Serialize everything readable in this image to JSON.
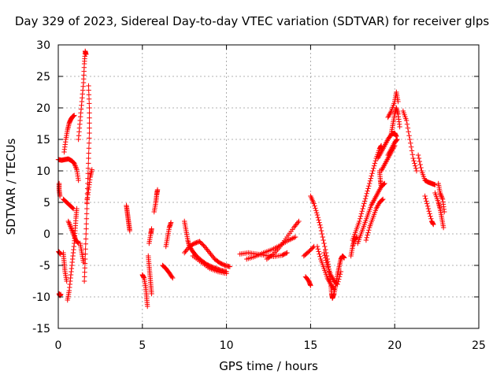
{
  "chart_data": {
    "type": "scatter",
    "title": "Day 329 of 2023, Sidereal Day-to-day VTEC variation (SDTVAR) for receiver glps",
    "xlabel": "GPS time / hours",
    "ylabel": "SDTVAR / TECUs",
    "xlim": [
      0,
      25
    ],
    "ylim": [
      -15,
      30
    ],
    "xticks": [
      0,
      5,
      10,
      15,
      20,
      25
    ],
    "yticks": [
      -15,
      -10,
      -5,
      0,
      5,
      10,
      15,
      20,
      25,
      30
    ],
    "grid": true,
    "marker": "+",
    "series": [
      {
        "name": "SDTVAR",
        "color": "#ff0000",
        "tracks": [
          [
            [
              0.0,
              11.8
            ],
            [
              0.2,
              11.7
            ],
            [
              0.4,
              11.8
            ],
            [
              0.6,
              11.9
            ],
            [
              0.8,
              11.6
            ],
            [
              0.95,
              11.2
            ],
            [
              1.1,
              10.2
            ],
            [
              1.2,
              8.5
            ]
          ],
          [
            [
              0.35,
              13.0
            ],
            [
              0.45,
              15.0
            ],
            [
              0.55,
              16.5
            ],
            [
              0.65,
              17.6
            ],
            [
              0.75,
              18.2
            ],
            [
              0.85,
              18.6
            ],
            [
              0.95,
              18.8
            ]
          ],
          [
            [
              0.05,
              8.0
            ],
            [
              0.05,
              7.0
            ],
            [
              0.1,
              6.0
            ]
          ],
          [
            [
              0.02,
              -2.8
            ],
            [
              0.08,
              -3.0
            ],
            [
              0.12,
              -3.2
            ]
          ],
          [
            [
              0.05,
              -9.5
            ],
            [
              0.1,
              -9.8
            ],
            [
              0.15,
              -9.6
            ]
          ],
          [
            [
              0.3,
              5.5
            ],
            [
              0.5,
              5.0
            ],
            [
              0.7,
              4.5
            ],
            [
              0.9,
              4.0
            ]
          ],
          [
            [
              0.3,
              -3.0
            ],
            [
              0.35,
              -4.5
            ],
            [
              0.4,
              -6.0
            ],
            [
              0.5,
              -7.5
            ]
          ],
          [
            [
              0.55,
              -10.5
            ],
            [
              0.65,
              -9.0
            ],
            [
              0.75,
              -6.5
            ],
            [
              0.85,
              -4.0
            ],
            [
              0.95,
              -1.5
            ],
            [
              1.0,
              0.5
            ],
            [
              1.05,
              2.5
            ],
            [
              1.1,
              4.0
            ]
          ],
          [
            [
              0.6,
              2.0
            ],
            [
              0.75,
              1.0
            ],
            [
              0.9,
              0.0
            ],
            [
              1.05,
              -1.0
            ],
            [
              1.2,
              -1.5
            ]
          ],
          [
            [
              1.2,
              15.0
            ],
            [
              1.3,
              18.0
            ],
            [
              1.4,
              21.0
            ],
            [
              1.5,
              24.0
            ],
            [
              1.55,
              27.0
            ],
            [
              1.6,
              29.0
            ],
            [
              1.65,
              28.5
            ]
          ],
          [
            [
              1.55,
              -7.5
            ],
            [
              1.6,
              -4.0
            ],
            [
              1.65,
              0.0
            ],
            [
              1.7,
              4.0
            ],
            [
              1.75,
              8.0
            ],
            [
              1.8,
              12.0
            ],
            [
              1.85,
              16.0
            ],
            [
              1.85,
              20.0
            ],
            [
              1.8,
              23.5
            ]
          ],
          [
            [
              1.7,
              5.0
            ],
            [
              1.8,
              7.0
            ],
            [
              1.9,
              9.0
            ],
            [
              2.0,
              10.2
            ]
          ],
          [
            [
              1.3,
              -1.5
            ],
            [
              1.4,
              -3.0
            ],
            [
              1.5,
              -4.5
            ]
          ],
          [
            [
              4.05,
              4.5
            ],
            [
              4.1,
              3.5
            ],
            [
              4.15,
              2.5
            ],
            [
              4.2,
              1.5
            ],
            [
              4.25,
              0.5
            ]
          ],
          [
            [
              5.0,
              -6.5
            ],
            [
              5.1,
              -7.0
            ],
            [
              5.2,
              -8.5
            ],
            [
              5.25,
              -10.0
            ],
            [
              5.3,
              -11.5
            ]
          ],
          [
            [
              5.35,
              -3.5
            ],
            [
              5.4,
              -5.0
            ],
            [
              5.45,
              -6.5
            ],
            [
              5.5,
              -8.0
            ],
            [
              5.55,
              -9.5
            ]
          ],
          [
            [
              5.4,
              -1.5
            ],
            [
              5.5,
              0.0
            ],
            [
              5.55,
              0.8
            ]
          ],
          [
            [
              5.7,
              3.5
            ],
            [
              5.8,
              5.0
            ],
            [
              5.85,
              6.2
            ],
            [
              5.9,
              7.0
            ]
          ],
          [
            [
              6.2,
              -5.0
            ],
            [
              6.4,
              -5.5
            ],
            [
              6.6,
              -6.2
            ],
            [
              6.8,
              -7.0
            ]
          ],
          [
            [
              6.4,
              -2.0
            ],
            [
              6.5,
              -0.5
            ],
            [
              6.6,
              1.0
            ],
            [
              6.7,
              1.8
            ]
          ],
          [
            [
              7.5,
              2.0
            ],
            [
              7.6,
              0.5
            ],
            [
              7.7,
              -1.0
            ],
            [
              7.8,
              -2.0
            ],
            [
              8.0,
              -2.8
            ],
            [
              8.2,
              -3.5
            ],
            [
              8.5,
              -4.2
            ],
            [
              8.8,
              -4.8
            ],
            [
              9.1,
              -5.2
            ],
            [
              9.4,
              -5.5
            ],
            [
              9.7,
              -5.8
            ],
            [
              10.0,
              -6.0
            ]
          ],
          [
            [
              7.5,
              -3.0
            ],
            [
              7.8,
              -2.0
            ],
            [
              8.1,
              -1.5
            ],
            [
              8.4,
              -1.2
            ],
            [
              8.7,
              -2.0
            ],
            [
              9.0,
              -3.0
            ],
            [
              9.3,
              -4.0
            ],
            [
              9.6,
              -4.6
            ],
            [
              9.9,
              -5.0
            ],
            [
              10.2,
              -5.2
            ]
          ],
          [
            [
              8.0,
              -3.5
            ],
            [
              8.5,
              -4.5
            ],
            [
              9.0,
              -5.5
            ],
            [
              9.5,
              -6.0
            ],
            [
              10.0,
              -6.3
            ]
          ],
          [
            [
              10.8,
              -3.2
            ],
            [
              11.3,
              -3.0
            ],
            [
              11.8,
              -3.2
            ],
            [
              12.3,
              -3.4
            ],
            [
              12.8,
              -3.6
            ],
            [
              13.3,
              -3.4
            ],
            [
              13.6,
              -3.0
            ]
          ],
          [
            [
              11.2,
              -4.0
            ],
            [
              11.7,
              -3.6
            ],
            [
              12.2,
              -3.0
            ],
            [
              12.7,
              -2.5
            ],
            [
              13.2,
              -1.8
            ],
            [
              13.7,
              -1.0
            ],
            [
              14.1,
              -0.5
            ]
          ],
          [
            [
              12.4,
              -4.0
            ],
            [
              12.8,
              -3.2
            ],
            [
              13.2,
              -2.0
            ],
            [
              13.6,
              -0.5
            ],
            [
              14.0,
              1.0
            ],
            [
              14.3,
              2.0
            ]
          ],
          [
            [
              14.6,
              -3.5
            ],
            [
              14.9,
              -2.8
            ],
            [
              15.2,
              -2.0
            ]
          ],
          [
            [
              14.7,
              -6.8
            ],
            [
              14.9,
              -7.5
            ],
            [
              15.0,
              -8.2
            ]
          ],
          [
            [
              15.0,
              6.0
            ],
            [
              15.2,
              4.8
            ],
            [
              15.4,
              3.0
            ],
            [
              15.6,
              1.0
            ],
            [
              15.8,
              -1.5
            ],
            [
              16.0,
              -4.0
            ],
            [
              16.1,
              -6.0
            ],
            [
              16.2,
              -8.0
            ],
            [
              16.25,
              -9.5
            ],
            [
              16.3,
              -10.2
            ]
          ],
          [
            [
              15.4,
              -2.0
            ],
            [
              15.6,
              -4.0
            ],
            [
              15.8,
              -5.5
            ],
            [
              16.0,
              -7.0
            ],
            [
              16.2,
              -8.0
            ],
            [
              16.4,
              -8.8
            ]
          ],
          [
            [
              15.8,
              -3.0
            ],
            [
              16.0,
              -5.0
            ],
            [
              16.2,
              -6.5
            ],
            [
              16.4,
              -7.5
            ],
            [
              16.6,
              -8.0
            ],
            [
              16.8,
              -6.0
            ]
          ],
          [
            [
              16.3,
              -10.2
            ],
            [
              16.4,
              -9.5
            ],
            [
              16.5,
              -8.0
            ],
            [
              16.6,
              -6.5
            ],
            [
              16.7,
              -5.2
            ],
            [
              16.8,
              -4.0
            ],
            [
              16.9,
              -3.5
            ],
            [
              17.0,
              -3.8
            ]
          ],
          [
            [
              17.4,
              -3.5
            ],
            [
              17.5,
              -2.0
            ],
            [
              17.6,
              -1.0
            ],
            [
              17.75,
              -0.5
            ]
          ],
          [
            [
              17.5,
              -1.0
            ],
            [
              17.7,
              0.5
            ],
            [
              17.9,
              2.0
            ],
            [
              18.1,
              4.0
            ],
            [
              18.3,
              6.0
            ],
            [
              18.5,
              8.0
            ],
            [
              18.7,
              10.0
            ],
            [
              18.9,
              12.0
            ],
            [
              19.1,
              13.5
            ],
            [
              19.2,
              14.0
            ]
          ],
          [
            [
              17.8,
              -1.5
            ],
            [
              18.0,
              0.0
            ],
            [
              18.2,
              1.5
            ],
            [
              18.4,
              3.0
            ],
            [
              18.6,
              4.5
            ],
            [
              18.8,
              5.5
            ],
            [
              19.0,
              6.5
            ],
            [
              19.2,
              7.5
            ],
            [
              19.4,
              8.0
            ]
          ],
          [
            [
              18.3,
              -1.0
            ],
            [
              18.5,
              1.0
            ],
            [
              18.7,
              2.5
            ],
            [
              18.9,
              4.0
            ],
            [
              19.1,
              5.0
            ],
            [
              19.3,
              5.5
            ]
          ],
          [
            [
              19.0,
              12.0
            ],
            [
              19.2,
              13.0
            ],
            [
              19.4,
              14.0
            ],
            [
              19.6,
              15.0
            ],
            [
              19.8,
              15.8
            ],
            [
              20.0,
              16.0
            ],
            [
              20.1,
              15.5
            ]
          ],
          [
            [
              19.2,
              10.0
            ],
            [
              19.4,
              11.0
            ],
            [
              19.6,
              12.0
            ],
            [
              19.8,
              13.0
            ],
            [
              20.0,
              14.0
            ]
          ],
          [
            [
              19.6,
              12.5
            ],
            [
              19.8,
              13.5
            ],
            [
              20.0,
              14.5
            ],
            [
              20.15,
              15.0
            ]
          ],
          [
            [
              19.6,
              18.5
            ],
            [
              19.8,
              19.5
            ],
            [
              20.0,
              21.0
            ],
            [
              20.1,
              22.5
            ],
            [
              20.2,
              21.0
            ]
          ],
          [
            [
              19.8,
              16.0
            ],
            [
              19.9,
              17.5
            ],
            [
              20.0,
              19.0
            ],
            [
              20.1,
              20.0
            ],
            [
              20.2,
              19.0
            ],
            [
              20.3,
              17.0
            ]
          ],
          [
            [
              19.1,
              10.0
            ],
            [
              19.15,
              8.5
            ],
            [
              19.2,
              7.5
            ]
          ],
          [
            [
              20.5,
              19.5
            ],
            [
              20.7,
              18.0
            ],
            [
              20.9,
              15.0
            ],
            [
              21.1,
              12.0
            ],
            [
              21.3,
              10.0
            ]
          ],
          [
            [
              21.4,
              12.5
            ],
            [
              21.6,
              10.0
            ],
            [
              21.8,
              8.5
            ],
            [
              22.0,
              8.2
            ],
            [
              22.2,
              8.0
            ],
            [
              22.4,
              7.8
            ]
          ],
          [
            [
              21.8,
              6.0
            ],
            [
              22.0,
              4.0
            ],
            [
              22.2,
              2.0
            ],
            [
              22.3,
              1.5
            ]
          ],
          [
            [
              22.4,
              6.5
            ],
            [
              22.6,
              5.0
            ],
            [
              22.7,
              4.0
            ],
            [
              22.8,
              2.5
            ],
            [
              22.9,
              1.0
            ]
          ],
          [
            [
              22.6,
              8.0
            ],
            [
              22.7,
              6.5
            ],
            [
              22.85,
              5.5
            ],
            [
              22.95,
              3.5
            ]
          ]
        ]
      }
    ]
  }
}
